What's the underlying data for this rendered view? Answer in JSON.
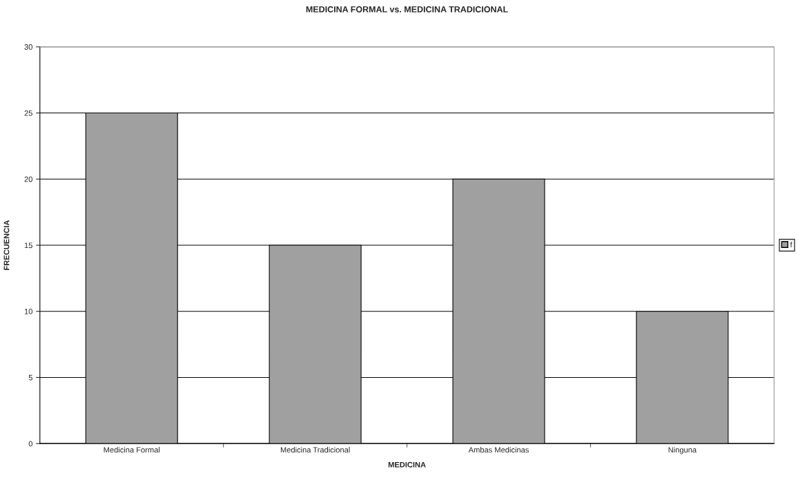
{
  "chart_data": {
    "type": "bar",
    "title": "MEDICINA FORMAL vs. MEDICINA TRADICIONAL",
    "xlabel": "MEDICINA",
    "ylabel": "FRECUENCIA",
    "categories": [
      "Medicina Formal",
      "Medicina Tradicional",
      "Ambas Medicinas",
      "Ninguna"
    ],
    "series": [
      {
        "name": "f",
        "color": "#a0a0a0",
        "values": [
          25,
          15,
          20,
          10
        ]
      }
    ],
    "ylim": [
      0,
      30
    ],
    "yticks": [
      0,
      5,
      10,
      15,
      20,
      25,
      30
    ],
    "grid": "y",
    "legend": "right"
  }
}
